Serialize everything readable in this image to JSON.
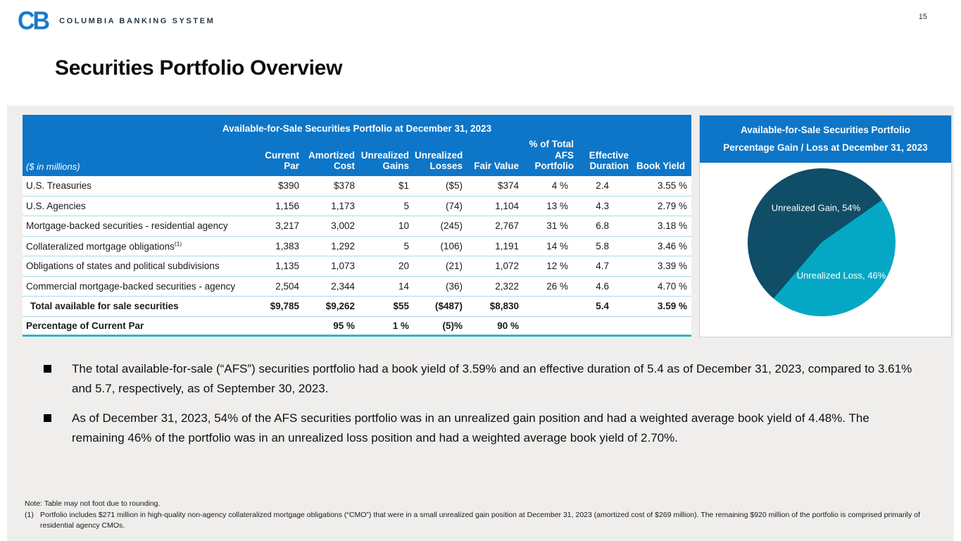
{
  "page": {
    "number": "15"
  },
  "logo": {
    "mark": "CB",
    "company": "COLUMBIA BANKING SYSTEM"
  },
  "title": "Securities Portfolio Overview",
  "table": {
    "title": "Available-for-Sale Securities Portfolio at December 31, 2023",
    "units_label": "($ in millions)",
    "columns": [
      "Current\nPar",
      "Amortized\nCost",
      "Unrealized\nGains",
      "Unrealized\nLosses",
      "Fair Value",
      "% of Total\nAFS\nPortfolio",
      "Effective\nDuration",
      "Book Yield"
    ],
    "rows": [
      {
        "label": "U.S. Treasuries",
        "sup": "",
        "bold": false,
        "indent": false,
        "values": [
          "$390",
          "$378",
          "$1",
          "($5)",
          "$374",
          "4 %",
          "2.4",
          "3.55 %"
        ]
      },
      {
        "label": "U.S. Agencies",
        "sup": "",
        "bold": false,
        "indent": false,
        "values": [
          "1,156",
          "1,173",
          "5",
          "(74)",
          "1,104",
          "13 %",
          "4.3",
          "2.79 %"
        ]
      },
      {
        "label": "Mortgage-backed securities - residential agency",
        "sup": "",
        "bold": false,
        "indent": false,
        "values": [
          "3,217",
          "3,002",
          "10",
          "(245)",
          "2,767",
          "31 %",
          "6.8",
          "3.18 %"
        ]
      },
      {
        "label": "Collateralized mortgage obligations",
        "sup": "(1)",
        "bold": false,
        "indent": false,
        "values": [
          "1,383",
          "1,292",
          "5",
          "(106)",
          "1,191",
          "14 %",
          "5.8",
          "3.46 %"
        ]
      },
      {
        "label": "Obligations of states and political subdivisions",
        "sup": "",
        "bold": false,
        "indent": false,
        "values": [
          "1,135",
          "1,073",
          "20",
          "(21)",
          "1,072",
          "12 %",
          "4.7",
          "3.39 %"
        ]
      },
      {
        "label": "Commercial mortgage-backed securities - agency",
        "sup": "",
        "bold": false,
        "indent": false,
        "values": [
          "2,504",
          "2,344",
          "14",
          "(36)",
          "2,322",
          "26 %",
          "4.6",
          "4.70 %"
        ]
      },
      {
        "label": "Total available for sale securities",
        "sup": "",
        "bold": true,
        "indent": true,
        "values": [
          "$9,785",
          "$9,262",
          "$55",
          "($487)",
          "$8,830",
          "",
          "5.4",
          "3.59 %"
        ]
      },
      {
        "label": "Percentage of Current Par",
        "sup": "",
        "bold": true,
        "indent": false,
        "values": [
          "",
          "95 %",
          "1 %",
          "(5)%",
          "90 %",
          "",
          "",
          ""
        ]
      }
    ]
  },
  "pie_panel": {
    "title_line1": "Available-for-Sale Securities Portfolio",
    "title_line2": "Percentage Gain / Loss at December 31, 2023",
    "gain_label": "Unrealized Gain, 54%",
    "loss_label": "Unrealized Loss, 46%"
  },
  "chart_data": {
    "type": "pie",
    "title": "Available-for-Sale Securities Portfolio Percentage Gain / Loss at December 31, 2023",
    "labels": [
      "Unrealized Gain",
      "Unrealized Loss"
    ],
    "values": [
      54,
      46
    ],
    "colors": [
      "#104d67",
      "#05a8c4"
    ],
    "start_angle_deg": 55,
    "data_labels": [
      "Unrealized Gain, 54%",
      "Unrealized Loss, 46%"
    ],
    "legend": "none"
  },
  "bullets": [
    "The total available-for-sale (“AFS”) securities portfolio had a book yield of 3.59% and an effective duration of 5.4 as of December 31, 2023, compared to 3.61% and 5.7, respectively, as of September 30, 2023.",
    "As of December 31, 2023, 54% of the AFS securities portfolio was in an unrealized gain position and had a weighted average book yield of 4.48%. The remaining 46% of the portfolio was in an unrealized loss position and had a weighted average book yield of 2.70%."
  ],
  "footnotes": {
    "note": "Note: Table may not foot due to rounding.",
    "item1_marker": "(1)",
    "item1_text": "Portfolio includes $271 million in high-quality non-agency collateralized mortgage obligations (“CMO”) that were in a small unrealized gain position at December 31, 2023 (amortized cost of $269 million). The remaining $920 million of the portfolio is comprised primarily of residential agency CMOs."
  },
  "colors": {
    "header_blue": "#0d76c8",
    "row_separator": "#a6dbe8",
    "table_bottom_border": "#2fb4c4",
    "content_background": "#f0eeec",
    "logo_blue": "#1b7ac9",
    "logo_navy": "#243746",
    "pie_gain": "#104d67",
    "pie_loss": "#05a8c4"
  }
}
